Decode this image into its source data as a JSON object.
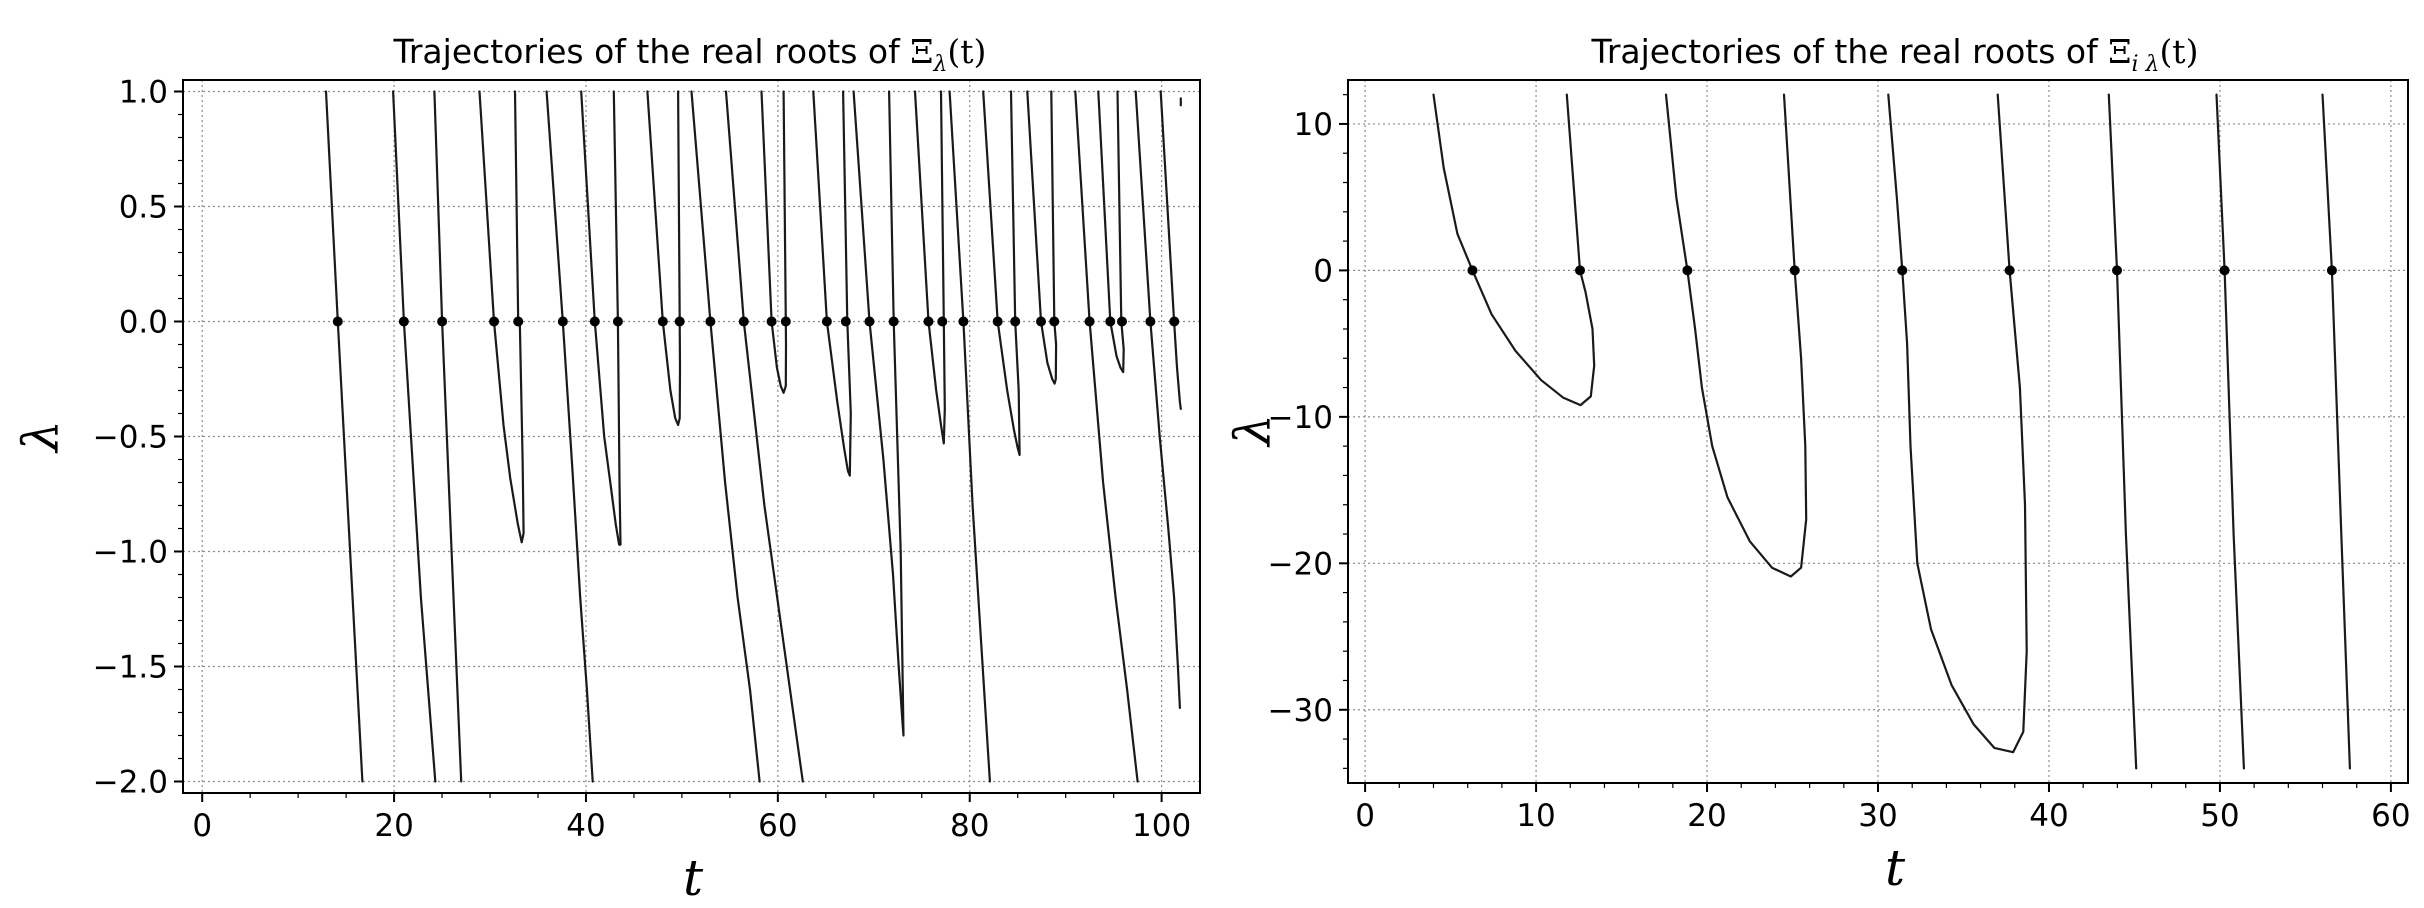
{
  "chart_data": [
    {
      "type": "line",
      "title_prefix": "Trajectories of the real roots of ",
      "title_symbol": "Ξ",
      "title_subscript": "λ",
      "title_argument": "(t)",
      "xlabel": "t",
      "ylabel": "λ",
      "xlim": [
        -2,
        104
      ],
      "ylim": [
        -2.05,
        1.05
      ],
      "xticks": [
        0,
        20,
        40,
        60,
        80,
        100
      ],
      "xtick_labels": [
        "0",
        "20",
        "40",
        "60",
        "80",
        "100"
      ],
      "yticks": [
        1.0,
        0.5,
        0.0,
        -0.5,
        -1.0,
        -1.5,
        -2.0
      ],
      "ytick_labels": [
        "1.0",
        "0.5",
        "0.0",
        "−0.5",
        "−1.0",
        "−1.5",
        "−2.0"
      ],
      "x_minor_step": 5,
      "y_minor_step": 0.1,
      "grid": true,
      "series_color": "#1a1a1a",
      "series": [
        {
          "x": [
            12.9,
            14.13,
            16.7
          ],
          "y": [
            1.0,
            0.0,
            -2.0
          ]
        },
        {
          "x": [
            19.9,
            21.02,
            22.8,
            24.3
          ],
          "y": [
            1.0,
            0.0,
            -1.2,
            -2.0
          ]
        },
        {
          "x": [
            24.2,
            25.01,
            26.0,
            27.0
          ],
          "y": [
            1.0,
            0.0,
            -1.0,
            -2.0
          ]
        },
        {
          "x": [
            28.9,
            30.42,
            31.4,
            32.1,
            32.9,
            33.3,
            33.5,
            33.4,
            33.1,
            32.94,
            32.6
          ],
          "y": [
            1.0,
            0.0,
            -0.45,
            -0.68,
            -0.88,
            -0.96,
            -0.92,
            -0.6,
            0.0,
            0.0,
            1.0
          ]
        },
        {
          "x": [
            35.9,
            37.59,
            38.6,
            39.4,
            40.1,
            40.7
          ],
          "y": [
            1.0,
            0.0,
            -0.65,
            -1.2,
            -1.6,
            -2.0
          ]
        },
        {
          "x": [
            39.5,
            40.92,
            41.9,
            42.6,
            43.1,
            43.45,
            43.6,
            43.5,
            43.4,
            43.33,
            42.9
          ],
          "y": [
            1.0,
            0.0,
            -0.5,
            -0.72,
            -0.88,
            -0.97,
            -0.97,
            -0.7,
            -0.3,
            0.0,
            1.0
          ]
        },
        {
          "x": [
            46.4,
            48.01,
            48.8,
            49.3,
            49.6,
            49.77,
            49.8,
            49.77,
            49.6
          ],
          "y": [
            1.0,
            0.0,
            -0.3,
            -0.42,
            -0.45,
            -0.42,
            -0.2,
            0.0,
            1.0
          ]
        },
        {
          "x": [
            51.0,
            52.97,
            54.5,
            55.8,
            57.1,
            58.1
          ],
          "y": [
            1.0,
            0.0,
            -0.7,
            -1.2,
            -1.6,
            -2.0
          ]
        },
        {
          "x": [
            54.6,
            56.45,
            58.6,
            60.6,
            62.6
          ],
          "y": [
            1.0,
            0.0,
            -0.8,
            -1.4,
            -2.0
          ]
        },
        {
          "x": [
            58.3,
            59.35,
            59.9,
            60.3,
            60.6,
            60.83,
            60.85,
            60.83,
            60.6
          ],
          "y": [
            1.0,
            0.0,
            -0.2,
            -0.28,
            -0.31,
            -0.28,
            -0.1,
            0.0,
            1.0
          ]
        },
        {
          "x": [
            63.7,
            65.11,
            66.2,
            66.9,
            67.3,
            67.5,
            67.6,
            67.24,
            66.8
          ],
          "y": [
            1.0,
            0.0,
            -0.35,
            -0.55,
            -0.65,
            -0.67,
            -0.4,
            0.0,
            1.0
          ]
        },
        {
          "x": [
            67.9,
            69.55,
            71.0,
            72.0,
            72.6,
            73.0,
            73.1,
            72.8,
            72.07,
            71.6
          ],
          "y": [
            1.0,
            0.0,
            -0.6,
            -1.1,
            -1.5,
            -1.75,
            -1.8,
            -1.0,
            0.0,
            1.0
          ]
        },
        {
          "x": [
            74.3,
            75.7,
            76.5,
            77.0,
            77.3,
            77.4,
            77.3,
            77.0
          ],
          "y": [
            1.0,
            0.0,
            -0.3,
            -0.45,
            -0.53,
            -0.38,
            0.0,
            1.0
          ]
        },
        {
          "x": [
            77.9,
            79.34,
            80.3,
            81.2,
            82.1
          ],
          "y": [
            1.0,
            0.0,
            -0.8,
            -1.4,
            -2.0
          ]
        },
        {
          "x": [
            81.4,
            82.91,
            83.9,
            84.6,
            85.0,
            85.2,
            85.1,
            84.74,
            84.3
          ],
          "y": [
            1.0,
            0.0,
            -0.3,
            -0.47,
            -0.55,
            -0.58,
            -0.3,
            0.0,
            1.0
          ]
        },
        {
          "x": [
            86.0,
            87.43,
            88.1,
            88.6,
            88.85,
            88.97,
            89.0,
            88.81,
            88.5
          ],
          "y": [
            1.0,
            0.0,
            -0.18,
            -0.25,
            -0.27,
            -0.25,
            -0.1,
            0.0,
            1.0
          ]
        },
        {
          "x": [
            91.0,
            92.49,
            93.9,
            95.2,
            96.4,
            97.5
          ],
          "y": [
            1.0,
            0.0,
            -0.7,
            -1.2,
            -1.6,
            -2.0
          ]
        },
        {
          "x": [
            93.4,
            94.65,
            95.3,
            95.7,
            96.0,
            96.05,
            95.8,
            95.4
          ],
          "y": [
            1.0,
            0.0,
            -0.15,
            -0.2,
            -0.22,
            -0.12,
            0.0,
            1.0
          ]
        },
        {
          "x": [
            97.3,
            98.83,
            99.8,
            100.7,
            101.3,
            101.7,
            101.9
          ],
          "y": [
            1.0,
            0.0,
            -0.5,
            -0.9,
            -1.2,
            -1.5,
            -1.68
          ]
        },
        {
          "x": [
            99.9,
            101.3,
            101.6,
            101.9,
            102.0
          ],
          "y": [
            1.0,
            0.0,
            -0.2,
            -0.35,
            -0.38
          ]
        },
        {
          "x": [
            102.0,
            102.0
          ],
          "y": [
            0.97,
            0.94
          ]
        }
      ],
      "markers": {
        "x": [
          14.13,
          21.02,
          25.01,
          30.42,
          32.94,
          37.59,
          40.92,
          43.33,
          48.01,
          49.77,
          52.97,
          56.45,
          59.35,
          60.83,
          65.11,
          67.08,
          69.55,
          72.07,
          75.7,
          77.14,
          79.34,
          82.91,
          84.74,
          87.43,
          88.81,
          92.49,
          94.65,
          95.87,
          98.83,
          101.32
        ],
        "y": [
          0,
          0,
          0,
          0,
          0,
          0,
          0,
          0,
          0,
          0,
          0,
          0,
          0,
          0,
          0,
          0,
          0,
          0,
          0,
          0,
          0,
          0,
          0,
          0,
          0,
          0,
          0,
          0,
          0,
          0
        ]
      }
    },
    {
      "type": "line",
      "title_prefix": "Trajectories of the real roots of ",
      "title_symbol": "Ξ",
      "title_subscript": "i λ",
      "title_argument": "(t)",
      "xlabel": "t",
      "ylabel": "λ",
      "xlim": [
        -1,
        61
      ],
      "ylim": [
        -35,
        13
      ],
      "xticks": [
        0,
        10,
        20,
        30,
        40,
        50,
        60
      ],
      "xtick_labels": [
        "0",
        "10",
        "20",
        "30",
        "40",
        "50",
        "60"
      ],
      "yticks": [
        10,
        0,
        -10,
        -20,
        -30
      ],
      "ytick_labels": [
        "10",
        "0",
        "−10",
        "−20",
        "−30"
      ],
      "x_minor_step": 2,
      "y_minor_step": 2,
      "grid": true,
      "series_color": "#1a1a1a",
      "series": [
        {
          "x": [
            4.0,
            4.6,
            5.4,
            6.28,
            7.4,
            8.8,
            10.3,
            11.6,
            12.6,
            13.2,
            13.4,
            13.3,
            12.9,
            12.57,
            11.8
          ],
          "y": [
            12,
            7,
            2.5,
            0,
            -3,
            -5.5,
            -7.5,
            -8.7,
            -9.2,
            -8.6,
            -6.5,
            -4,
            -1.5,
            0,
            12
          ]
        },
        {
          "x": [
            17.6,
            18.2,
            18.85,
            19.3,
            19.7,
            20.3,
            21.2,
            22.5,
            23.8,
            24.9,
            25.5,
            25.8,
            25.75,
            25.5,
            25.13,
            24.5
          ],
          "y": [
            12,
            5,
            0,
            -4,
            -8,
            -12,
            -15.5,
            -18.5,
            -20.3,
            -20.9,
            -20.3,
            -17,
            -12,
            -6,
            0,
            12
          ]
        },
        {
          "x": [
            30.6,
            31.1,
            31.42,
            31.7,
            31.9,
            32.3,
            33.1,
            34.3,
            35.6,
            36.8,
            37.9,
            38.5,
            38.7,
            38.6,
            38.3,
            37.7,
            37.0
          ],
          "y": [
            12,
            5,
            0,
            -5,
            -12,
            -20,
            -24.5,
            -28.3,
            -31,
            -32.6,
            -32.9,
            -31.5,
            -26,
            -16,
            -8,
            0,
            12
          ]
        },
        {
          "x": [
            43.5,
            43.98,
            44.5,
            45.1
          ],
          "y": [
            12,
            0,
            -18,
            -34
          ]
        },
        {
          "x": [
            49.8,
            50.27,
            50.8,
            51.4
          ],
          "y": [
            12,
            0,
            -18,
            -34
          ]
        },
        {
          "x": [
            56.0,
            56.55,
            57.1,
            57.6
          ],
          "y": [
            12,
            0,
            -18,
            -34
          ]
        }
      ],
      "markers": {
        "x": [
          6.28,
          12.57,
          18.85,
          25.13,
          31.42,
          37.7,
          43.98,
          50.27,
          56.55
        ],
        "y": [
          0,
          0,
          0,
          0,
          0,
          0,
          0,
          0,
          0
        ]
      }
    }
  ]
}
